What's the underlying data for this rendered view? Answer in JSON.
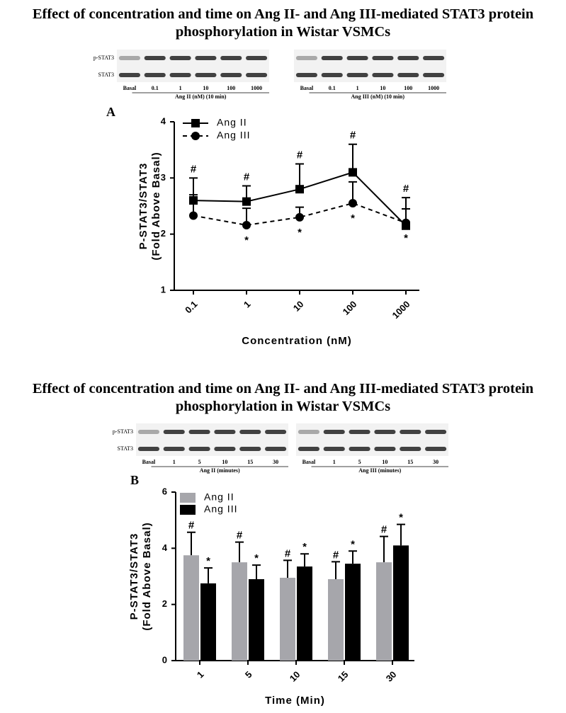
{
  "chart_data": [
    {
      "type": "line",
      "title": "Effect of concentration and time on Ang II- and Ang III-mediated  STAT3 protein phosphorylation in Wistar VSMCs",
      "panel_label": "A",
      "row_labels": [
        "p-STAT3",
        "STAT3"
      ],
      "lanes": [
        "Basal",
        "0.1",
        "1",
        "10",
        "100",
        "1000"
      ],
      "blots": [
        {
          "caption": "Ang II (nM) (10 min)"
        },
        {
          "caption": "Ang III (nM) (10 min)"
        }
      ],
      "x_label": "Concentration (nM)",
      "y_label": [
        "P-STAT3/STAT3",
        "(Fold Above Basal)"
      ],
      "categories": [
        "0.1",
        "1",
        "10",
        "100",
        "1000"
      ],
      "ylim": [
        1,
        4
      ],
      "yticks": [
        1,
        2,
        3,
        4
      ],
      "series": [
        {
          "name": "Ang II",
          "color": "#000000",
          "marker": "square",
          "dashed": false,
          "values": [
            2.6,
            2.58,
            2.8,
            3.1,
            2.15
          ],
          "errors": [
            0.4,
            0.28,
            0.45,
            0.5,
            0.5
          ],
          "annotations": [
            "#",
            "#",
            "#",
            "#",
            "#"
          ]
        },
        {
          "name": "Ang III",
          "color": "#000000",
          "marker": "circle",
          "dashed": true,
          "values": [
            2.33,
            2.16,
            2.3,
            2.55,
            2.2
          ],
          "errors": [
            0.37,
            0.3,
            0.18,
            0.38,
            0.25
          ],
          "annotations": [
            null,
            "*",
            "*",
            "*",
            "*"
          ]
        }
      ]
    },
    {
      "type": "bar",
      "title": "Effect of concentration and time on Ang II- and Ang III-mediated  STAT3 protein phosphorylation in Wistar VSMCs",
      "panel_label": "B",
      "row_labels": [
        "p-STAT3",
        "STAT3"
      ],
      "lanes": [
        "Basal",
        "1",
        "5",
        "10",
        "15",
        "30"
      ],
      "blots": [
        {
          "caption": "Ang II (minutes)"
        },
        {
          "caption": "Ang III (minutes)"
        }
      ],
      "x_label": "Time (Min)",
      "y_label": [
        "P-STAT3/STAT3",
        "(Fold Above Basal)"
      ],
      "categories": [
        "1",
        "5",
        "10",
        "15",
        "30"
      ],
      "ylim": [
        0,
        6
      ],
      "yticks": [
        0,
        2,
        4,
        6
      ],
      "series": [
        {
          "name": "Ang II",
          "color": "#a6a6ab",
          "values": [
            3.75,
            3.5,
            2.95,
            2.9,
            3.5
          ],
          "errors": [
            0.82,
            0.72,
            0.62,
            0.62,
            0.92
          ],
          "annotations": [
            "#",
            "#",
            "#",
            "#",
            "#"
          ]
        },
        {
          "name": "Ang III",
          "color": "#000000",
          "values": [
            2.75,
            2.9,
            3.35,
            3.45,
            4.1
          ],
          "errors": [
            0.55,
            0.5,
            0.45,
            0.45,
            0.75
          ],
          "annotations": [
            "*",
            "*",
            "*",
            "*",
            "*"
          ]
        }
      ]
    }
  ]
}
